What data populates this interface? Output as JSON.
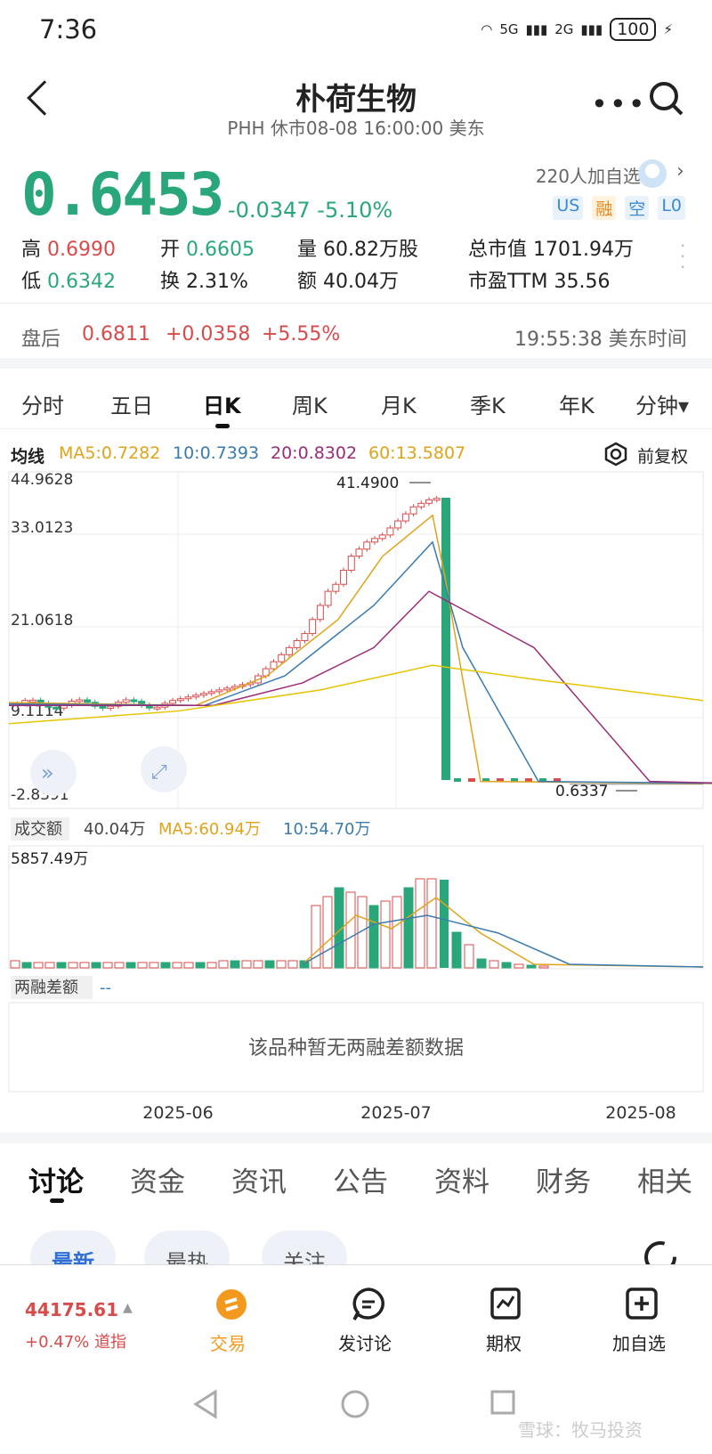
{
  "status": {
    "time": "7:36",
    "net1": "5G",
    "net2": "2G",
    "battery": "100"
  },
  "header": {
    "title": "朴荷生物",
    "subtitle": "PHH 休市08-08 16:00:00 美东"
  },
  "quote": {
    "price": "0.6453",
    "change": "-0.0347",
    "change_pct": "-5.10%",
    "watchers": "220人加自选",
    "tags": [
      "US",
      "融",
      "空",
      "L0"
    ]
  },
  "stats": {
    "high_label": "高",
    "high": "0.6990",
    "open_label": "开",
    "open": "0.6605",
    "vol_label": "量",
    "vol": "60.82万股",
    "mcap_label": "总市值",
    "mcap": "1701.94万",
    "low_label": "低",
    "low": "0.6342",
    "turn_label": "换",
    "turn": "2.31%",
    "amt_label": "额",
    "amt": "40.04万",
    "pe_label": "市盈TTM",
    "pe": "35.56"
  },
  "afterhours": {
    "label": "盘后",
    "price": "0.6811",
    "change": "+0.0358",
    "pct": "+5.55%",
    "time": "19:55:38 美东时间"
  },
  "tabs": [
    "分时",
    "五日",
    "日K",
    "周K",
    "月K",
    "季K",
    "年K",
    "分钟▾"
  ],
  "ma": {
    "label": "均线",
    "ma5": "MA5:0.7282",
    "ma10": "10:0.7393",
    "ma20": "20:0.8302",
    "ma60": "60:13.5807",
    "adjust": "前复权"
  },
  "chart_data": {
    "type": "candlestick",
    "y_ticks": [
      "44.9628",
      "33.0123",
      "21.0618",
      "9.1114",
      "-2.8391"
    ],
    "max_label": "41.4900",
    "min_label": "0.6337",
    "x_ticks": [
      "2025-06",
      "2025-07",
      "2025-08"
    ],
    "volume_label": "成交额",
    "volume_value": "40.04万",
    "vol_ma5": "MA5:60.94万",
    "vol_ma10": "10:54.70万",
    "vol_max": "5857.49万",
    "margin_label": "两融差额",
    "margin_value": "--",
    "margin_empty": "该品种暂无两融差额数据",
    "colors": {
      "up": "#d94b4b",
      "down": "#2aa77a",
      "ma5": "#e0a31a",
      "ma10": "#3a7bb0",
      "ma20": "#9b2c7a",
      "ma60": "#e5c400"
    }
  },
  "bottom_tabs": [
    "讨论",
    "资金",
    "资讯",
    "公告",
    "资料",
    "财务",
    "相关"
  ],
  "pills": [
    "最新",
    "最热",
    "关注"
  ],
  "footer": {
    "index_value": "44175.61",
    "index_change": "+0.47% 道指",
    "trade": "交易",
    "discuss": "发讨论",
    "options": "期权",
    "add": "加自选"
  },
  "watermark": "雪球：牧马投资"
}
